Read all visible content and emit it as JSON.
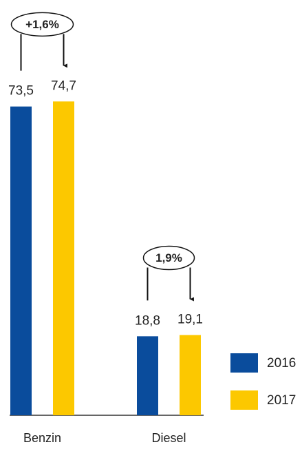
{
  "chart_data": {
    "type": "bar",
    "categories": [
      "Benzin",
      "Diesel"
    ],
    "series": [
      {
        "name": "2016",
        "color": "#0a4c9c",
        "values": [
          73.5,
          18.8
        ],
        "value_labels": [
          "73,5",
          "18,8"
        ]
      },
      {
        "name": "2017",
        "color": "#fcc800",
        "values": [
          74.7,
          19.1
        ],
        "value_labels": [
          "74,7",
          "19,1"
        ]
      }
    ],
    "annotations": [
      "+1,6%",
      "1,9%"
    ],
    "ylim": [
      0,
      80
    ]
  }
}
